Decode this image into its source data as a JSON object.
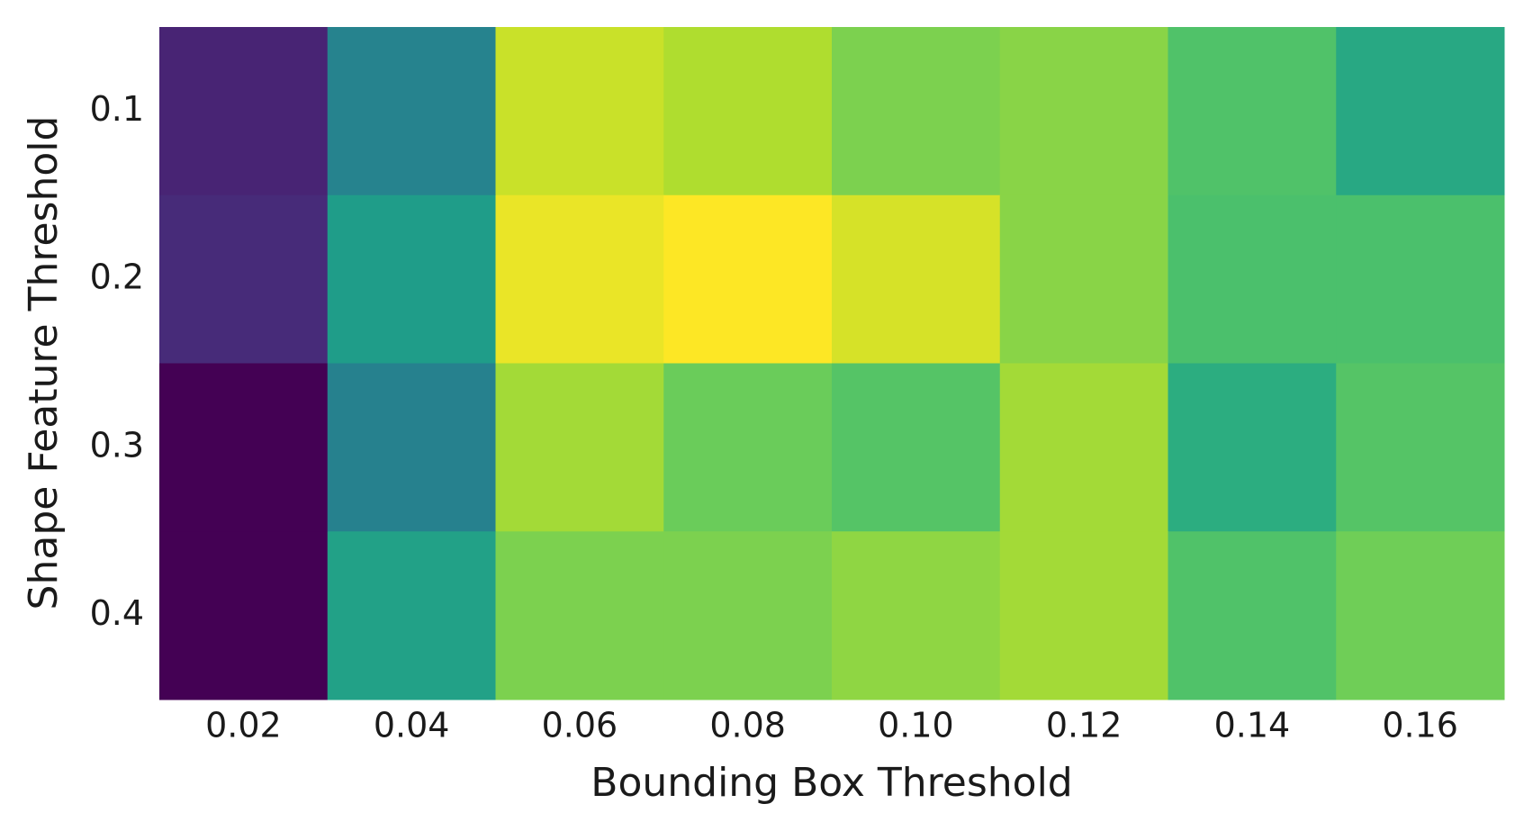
{
  "chart_data": {
    "type": "heatmap",
    "colormap": "viridis",
    "vlim": [
      0,
      1
    ],
    "x_label": "Bounding Box Threshold",
    "y_label": "Shape Feature Threshold",
    "x_categories": [
      "0.02",
      "0.04",
      "0.06",
      "0.08",
      "0.10",
      "0.12",
      "0.14",
      "0.16"
    ],
    "y_categories": [
      "0.1",
      "0.2",
      "0.3",
      "0.4"
    ],
    "values": [
      [
        0.1,
        0.45,
        0.92,
        0.88,
        0.8,
        0.82,
        0.72,
        0.6
      ],
      [
        0.12,
        0.55,
        0.97,
        1.0,
        0.94,
        0.82,
        0.71,
        0.71
      ],
      [
        0,
        0.44,
        0.86,
        0.77,
        0.73,
        0.86,
        0.62,
        0.73
      ],
      [
        0,
        0.57,
        0.8,
        0.8,
        0.83,
        0.86,
        0.72,
        0.78
      ]
    ]
  }
}
